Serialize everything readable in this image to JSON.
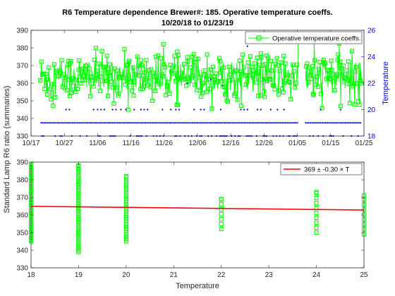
{
  "chart_data": [
    {
      "type": "line",
      "title_line1": "R6 Temperature dependence Brewer#: 185. Operative temperature coeffs.",
      "title_line2": "10/20/18 to 01/23/19",
      "xticks": [
        "10/17",
        "10/27",
        "11/06",
        "11/16",
        "11/26",
        "12/06",
        "12/16",
        "12/26",
        "01/05",
        "01/15",
        "01/25"
      ],
      "xlim_days": [
        0,
        100
      ],
      "ylabel_left": "Standard Lamp R6 ratio (summaries)",
      "ylim_left": [
        330,
        390
      ],
      "yticks_left": [
        330,
        340,
        350,
        360,
        370,
        380,
        390
      ],
      "ylabel_right": "Temperature",
      "ylim_right": [
        18,
        26
      ],
      "yticks_right": [
        18,
        20,
        22,
        24,
        26
      ],
      "legend_position": "top-right",
      "series": [
        {
          "name": "Operative temperature coeffs.",
          "axis": "left",
          "color": "#00ff00",
          "marker": "square",
          "range": [
            345,
            382
          ]
        },
        {
          "axis": "right",
          "color": "#0000cc",
          "marker": "dot",
          "levels": [
            18.0,
            19.0,
            20.0
          ]
        }
      ]
    },
    {
      "type": "scatter",
      "xlabel": "Temperature",
      "xlim": [
        18,
        25
      ],
      "xticks": [
        18,
        19,
        20,
        21,
        22,
        23,
        24,
        25
      ],
      "ylim": [
        330,
        390
      ],
      "yticks": [
        330,
        340,
        350,
        360,
        370,
        380,
        390
      ],
      "legend_position": "top-right",
      "fit": {
        "label": "369 ± -0.30 × T",
        "intercept": 369,
        "slope": -0.3,
        "color": "#ff0000"
      },
      "marker_color": "#00ff00",
      "points": [
        {
          "x": 18,
          "y_min": 345,
          "y_max": 389
        },
        {
          "x": 19,
          "y_min": 339,
          "y_max": 388
        },
        {
          "x": 20,
          "y_min": 345,
          "y_max": 382
        },
        {
          "x": 22,
          "y_min": 352,
          "y_max": 369
        },
        {
          "x": 24,
          "y_min": 350,
          "y_max": 373
        },
        {
          "x": 25,
          "y_min": 349,
          "y_max": 371
        }
      ]
    }
  ]
}
